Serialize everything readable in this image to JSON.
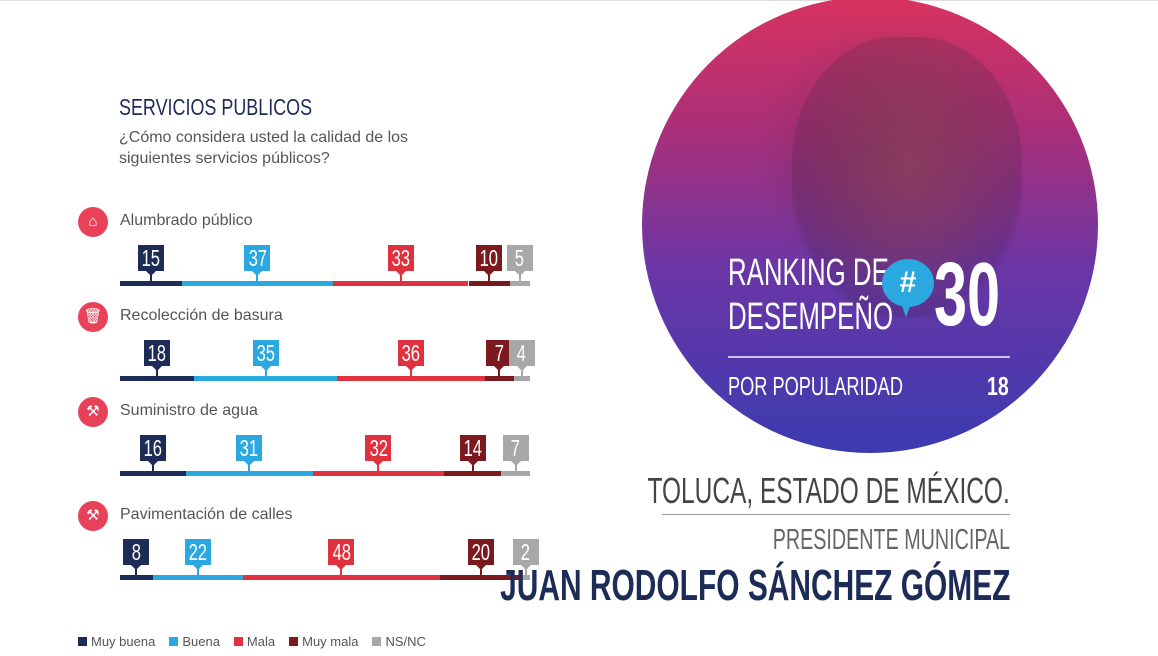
{
  "section_title": "SERVICIOS PUBLICOS",
  "question": "¿Cómo considera usted la calidad de los siguientes servicios públicos?",
  "chart_data": {
    "type": "bar",
    "stacked": true,
    "orientation": "horizontal",
    "unit": "%",
    "categories": [
      "Alumbrado público",
      "Recolección de basura",
      "Suministro de agua",
      "Pavimentación de calles"
    ],
    "icons": [
      "lamp-icon",
      "trash-icon",
      "water-icon",
      "roadwork-icon"
    ],
    "series": [
      {
        "name": "Muy buena",
        "color": "#1d2b57",
        "values": [
          15,
          18,
          16,
          8
        ]
      },
      {
        "name": "Buena",
        "color": "#2aa8df",
        "values": [
          37,
          35,
          31,
          22
        ]
      },
      {
        "name": "Mala",
        "color": "#e0313f",
        "values": [
          33,
          36,
          32,
          48
        ]
      },
      {
        "name": "Muy mala",
        "color": "#7a1a1f",
        "values": [
          10,
          7,
          14,
          20
        ]
      },
      {
        "name": "NS/NC",
        "color": "#a8a8a8",
        "values": [
          5,
          4,
          7,
          2
        ]
      }
    ],
    "legend": "bottom"
  },
  "ranking": {
    "line1": "RANKING DE",
    "line2": "DESEMPEÑO",
    "hash": "#",
    "rank": "30",
    "popularity_label": "POR POPULARIDAD",
    "popularity_value": "18"
  },
  "location": "TOLUCA, ESTADO DE MÉXICO.",
  "position": "PRESIDENTE MUNICIPAL",
  "name": "JUAN RODOLFO SÁNCHEZ GÓMEZ"
}
